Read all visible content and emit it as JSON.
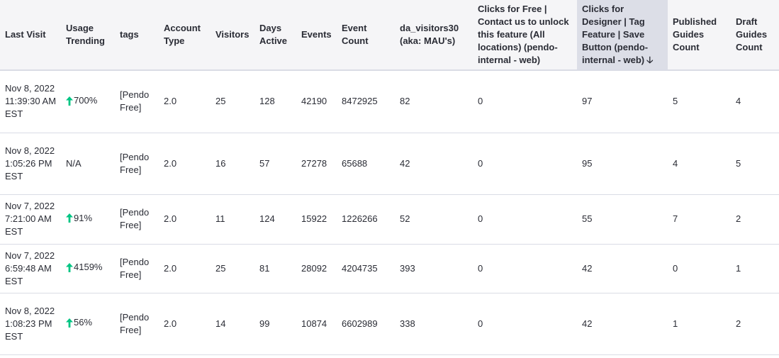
{
  "colors": {
    "header_bg": "#f5f5f7",
    "sorted_header_bg": "#dcdee7",
    "trend_up": "#00c583",
    "border": "#dadce5",
    "text": "#2a2c35"
  },
  "table": {
    "columns": [
      "Last Visit",
      "Usage Trending",
      "tags",
      "Account Type",
      "Visitors",
      "Days Active",
      "Events",
      "Event Count",
      "da_visitors30 (aka: MAU's)",
      "Clicks for Free | Contact us to unlock this feature (All locations) (pendo-internal - web)",
      "Clicks for Designer | Tag Feature | Save Button (pendo-internal - web)",
      "Published Guides Count",
      "Draft Guides Count"
    ],
    "sort_icon": "arrow-down-icon",
    "sort_arrow_glyph": "🡣",
    "rows": [
      {
        "last_visit": "Nov 8, 2022 11:39:30 AM EST",
        "trend_dir": "up",
        "trend": "700%",
        "tags": "[Pendo Free]",
        "account_type": "2.0",
        "visitors": "25",
        "days_active": "128",
        "events": "42190",
        "event_count": "8472925",
        "mau": "82",
        "clicks_free": "0",
        "clicks_designer": "97",
        "published_guides": "5",
        "draft_guides": "4"
      },
      {
        "last_visit": "Nov 8, 2022 1:05:26 PM EST",
        "trend_dir": "none",
        "trend": "N/A",
        "tags": "[Pendo Free]",
        "account_type": "2.0",
        "visitors": "16",
        "days_active": "57",
        "events": "27278",
        "event_count": "65688",
        "mau": "42",
        "clicks_free": "0",
        "clicks_designer": "95",
        "published_guides": "4",
        "draft_guides": "5"
      },
      {
        "last_visit": "Nov 7, 2022 7:21:00 AM EST",
        "trend_dir": "up",
        "trend": "91%",
        "tags": "[Pendo Free]",
        "account_type": "2.0",
        "visitors": "11",
        "days_active": "124",
        "events": "15922",
        "event_count": "1226266",
        "mau": "52",
        "clicks_free": "0",
        "clicks_designer": "55",
        "published_guides": "7",
        "draft_guides": "2"
      },
      {
        "last_visit": "Nov 7, 2022 6:59:48 AM EST",
        "trend_dir": "up",
        "trend": "4159%",
        "tags": "[Pendo Free]",
        "account_type": "2.0",
        "visitors": "25",
        "days_active": "81",
        "events": "28092",
        "event_count": "4204735",
        "mau": "393",
        "clicks_free": "0",
        "clicks_designer": "42",
        "published_guides": "0",
        "draft_guides": "1"
      },
      {
        "last_visit": "Nov 8, 2022 1:08:23 PM EST",
        "trend_dir": "up",
        "trend": "56%",
        "tags": "[Pendo Free]",
        "account_type": "2.0",
        "visitors": "14",
        "days_active": "99",
        "events": "10874",
        "event_count": "6602989",
        "mau": "338",
        "clicks_free": "0",
        "clicks_designer": "42",
        "published_guides": "1",
        "draft_guides": "2"
      }
    ]
  }
}
